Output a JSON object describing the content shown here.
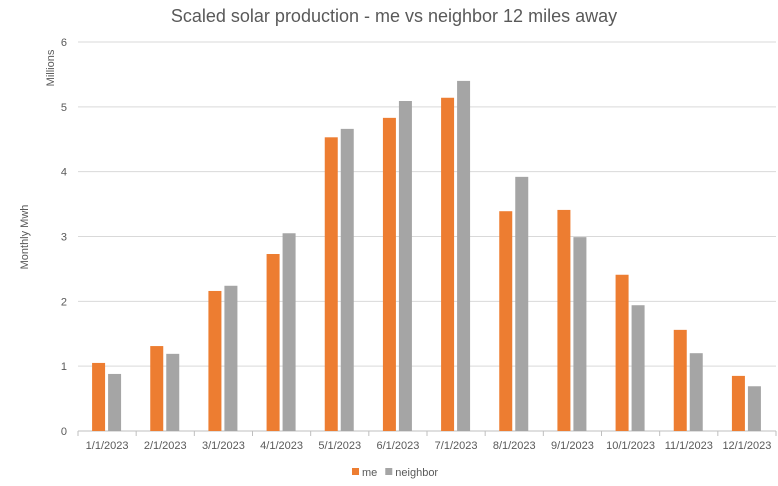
{
  "chart_data": {
    "type": "bar",
    "title": "Scaled solar production - me vs neighbor 12 miles away",
    "xlabel": "",
    "ylabel": "Monthly Mwh",
    "yunit_label": "Millions",
    "ylim": [
      0,
      6
    ],
    "yticks": [
      "0",
      "1",
      "2",
      "3",
      "4",
      "5",
      "6"
    ],
    "grid": true,
    "legend_position": "bottom",
    "categories": [
      "1/1/2023",
      "2/1/2023",
      "3/1/2023",
      "4/1/2023",
      "5/1/2023",
      "6/1/2023",
      "7/1/2023",
      "8/1/2023",
      "9/1/2023",
      "10/1/2023",
      "11/1/2023",
      "12/1/2023"
    ],
    "series": [
      {
        "name": "me",
        "color": "#ED7D31",
        "values": [
          1.05,
          1.31,
          2.16,
          2.73,
          4.53,
          4.83,
          5.14,
          3.39,
          3.41,
          2.41,
          1.56,
          0.85
        ]
      },
      {
        "name": "neighbor",
        "color": "#A5A5A5",
        "values": [
          0.88,
          1.19,
          2.24,
          3.05,
          4.66,
          5.09,
          5.4,
          3.92,
          2.99,
          1.94,
          1.2,
          0.69
        ]
      }
    ]
  }
}
